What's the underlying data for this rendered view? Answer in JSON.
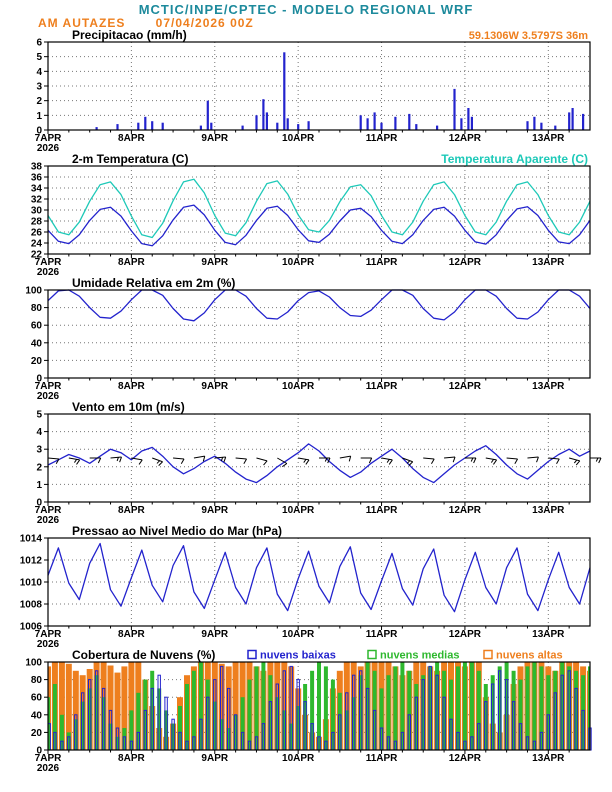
{
  "header": {
    "title": "MCTIC/INPE/CPTEC - MODELO REGIONAL WRF",
    "station": "AM AUTAZES",
    "run": "07/04/2026 00Z",
    "title_color": "#1d8a9c",
    "accent_color": "#ee7f1e"
  },
  "axis": {
    "x_tick_labels": [
      "7APR",
      "8APR",
      "9APR",
      "10APR",
      "11APR",
      "12APR",
      "13APR"
    ],
    "year": "2026",
    "span_hours": 156
  },
  "colors": {
    "line_blue": "#2323cd",
    "cyan": "#1ec9b8",
    "green": "#2eb82e",
    "orange": "#ee7f1e",
    "black": "#000000"
  },
  "chart_data": [
    {
      "id": "precip",
      "type": "bar",
      "title": "Precipitacao (mm/h)",
      "annotation": "59.1306W 3.5797S 36m",
      "ylim": [
        0,
        6
      ],
      "ytick_step": 1,
      "bar_color": "#2323cd",
      "events_hour_value": [
        [
          14,
          0.2
        ],
        [
          20,
          0.4
        ],
        [
          26,
          0.5
        ],
        [
          28,
          0.9
        ],
        [
          30,
          0.6
        ],
        [
          33,
          0.5
        ],
        [
          44,
          0.3
        ],
        [
          46,
          2.0
        ],
        [
          47,
          0.5
        ],
        [
          56,
          0.3
        ],
        [
          60,
          1.0
        ],
        [
          62,
          2.1
        ],
        [
          63,
          1.2
        ],
        [
          66,
          0.5
        ],
        [
          68,
          5.3
        ],
        [
          69,
          0.8
        ],
        [
          72,
          0.4
        ],
        [
          75,
          0.6
        ],
        [
          90,
          1.0
        ],
        [
          92,
          0.8
        ],
        [
          94,
          1.2
        ],
        [
          96,
          0.5
        ],
        [
          100,
          0.9
        ],
        [
          104,
          1.1
        ],
        [
          106,
          0.4
        ],
        [
          112,
          0.3
        ],
        [
          117,
          2.8
        ],
        [
          119,
          0.8
        ],
        [
          121,
          1.5
        ],
        [
          122,
          0.9
        ],
        [
          138,
          0.6
        ],
        [
          140,
          0.9
        ],
        [
          142,
          0.5
        ],
        [
          146,
          0.3
        ],
        [
          150,
          1.2
        ],
        [
          151,
          1.5
        ],
        [
          154,
          1.1
        ]
      ]
    },
    {
      "id": "temp",
      "type": "line",
      "title": "2-m Temperatura (C)",
      "legend_right": "Temperatura Aparente (C)",
      "ylim": [
        22,
        38
      ],
      "ytick_step": 2,
      "step_hours": 3,
      "series": [
        {
          "name": "2-m Temperatura (C)",
          "color": "#2323cd",
          "values": [
            26.3,
            24.3,
            23.9,
            25.5,
            28.1,
            30.1,
            30.5,
            28.9,
            26.2,
            23.9,
            23.5,
            25.3,
            28.2,
            30.5,
            30.9,
            29.1,
            26.3,
            24.1,
            23.7,
            25.4,
            28.1,
            30.3,
            30.7,
            29.0,
            26.4,
            24.4,
            24.1,
            25.6,
            28.0,
            30.0,
            30.3,
            28.8,
            26.3,
            24.3,
            23.9,
            25.5,
            28.1,
            30.1,
            30.5,
            28.9,
            26.3,
            24.2,
            23.8,
            25.5,
            28.1,
            30.2,
            30.6,
            29.0,
            26.3,
            24.2,
            23.9,
            25.5,
            28.1
          ]
        },
        {
          "name": "Temperatura Aparente (C)",
          "color": "#1ec9b8",
          "values": [
            29.0,
            26.0,
            25.5,
            27.8,
            31.6,
            34.6,
            35.1,
            32.8,
            28.9,
            25.5,
            25.0,
            27.6,
            31.7,
            35.1,
            35.6,
            33.1,
            29.0,
            25.8,
            25.3,
            27.7,
            31.6,
            34.8,
            35.3,
            32.9,
            29.1,
            26.4,
            26.0,
            28.1,
            31.5,
            34.2,
            34.6,
            32.6,
            29.0,
            26.0,
            25.5,
            27.8,
            31.6,
            34.6,
            35.1,
            32.8,
            29.0,
            26.0,
            25.5,
            27.8,
            31.6,
            34.6,
            35.1,
            32.8,
            29.0,
            26.0,
            25.5,
            27.8,
            31.6
          ]
        }
      ]
    },
    {
      "id": "rh",
      "type": "line",
      "title": "Umidade Relativa em 2m (%)",
      "ylim": [
        0,
        100
      ],
      "ytick_step": 20,
      "step_hours": 3,
      "series": [
        {
          "name": "Umidade Relativa em 2m (%)",
          "color": "#2323cd",
          "values": [
            88,
            99,
            100,
            93,
            80,
            69,
            68,
            76,
            89,
            100,
            100,
            94,
            79,
            67,
            65,
            74,
            89,
            100,
            100,
            93,
            79,
            68,
            67,
            75,
            88,
            97,
            99,
            92,
            80,
            71,
            70,
            77,
            89,
            100,
            100,
            94,
            79,
            68,
            66,
            75,
            89,
            100,
            100,
            93,
            79,
            68,
            67,
            75,
            89,
            100,
            100,
            93,
            79
          ]
        }
      ]
    },
    {
      "id": "wind",
      "type": "wind",
      "title": "Vento em 10m (m/s)",
      "ylim": [
        0,
        5
      ],
      "ytick_step": 1,
      "step_hours": 3,
      "series": [
        {
          "name": "Vento em 10m (m/s)",
          "color": "#2323cd",
          "values": [
            2.1,
            2.4,
            2.7,
            2.5,
            2.2,
            2.6,
            3.0,
            2.8,
            2.4,
            2.9,
            3.1,
            2.6,
            2.0,
            1.6,
            1.9,
            2.3,
            2.6,
            2.2,
            1.7,
            1.3,
            1.1,
            1.5,
            2.0,
            2.4,
            2.8,
            3.3,
            2.9,
            2.3,
            1.8,
            1.4,
            1.7,
            2.2,
            2.6,
            3.0,
            2.5,
            1.9,
            1.4,
            1.1,
            1.6,
            2.1,
            2.5,
            2.9,
            3.2,
            2.7,
            2.1,
            1.6,
            1.3,
            1.8,
            2.3,
            2.7,
            3.0,
            2.6,
            2.9
          ]
        }
      ],
      "barbs": {
        "step_hours": 6,
        "y_value": 2.5,
        "color": "#000000",
        "dir_deg": [
          95,
          100,
          90,
          85,
          100,
          110,
          95,
          80,
          85,
          95,
          105,
          120,
          100,
          90,
          80,
          90,
          100,
          110,
          95,
          85,
          90,
          100,
          95,
          85,
          95,
          105,
          90
        ]
      }
    },
    {
      "id": "pres",
      "type": "line",
      "title": "Pressao ao Nivel Medio do Mar (hPa)",
      "ylim": [
        1006,
        1014
      ],
      "ytick_step": 2,
      "step_hours": 3,
      "series": [
        {
          "name": "Pressao ao Nivel Medio do Mar (hPa)",
          "color": "#2323cd",
          "values": [
            1010.6,
            1013.1,
            1009.9,
            1008.4,
            1011.7,
            1013.5,
            1009.3,
            1007.8,
            1010.4,
            1012.9,
            1009.7,
            1008.2,
            1011.5,
            1013.3,
            1009.1,
            1007.6,
            1010.2,
            1012.7,
            1009.5,
            1008.0,
            1011.3,
            1013.1,
            1008.9,
            1007.4,
            1010.3,
            1012.8,
            1009.6,
            1008.1,
            1011.4,
            1013.2,
            1009.0,
            1007.5,
            1010.1,
            1012.6,
            1009.4,
            1007.9,
            1011.2,
            1013.0,
            1008.8,
            1007.3,
            1010.2,
            1012.7,
            1009.5,
            1008.0,
            1011.3,
            1013.1,
            1008.9,
            1007.4,
            1010.2,
            1012.7,
            1009.5,
            1008.0,
            1011.3
          ]
        }
      ]
    },
    {
      "id": "clouds",
      "type": "clouds",
      "title": "Cobertura de Nuvens (%)",
      "ylim": [
        0,
        100
      ],
      "ytick_step": 20,
      "step_hours": 2,
      "legend": [
        {
          "label": "nuvens baixas",
          "color": "#2323cd"
        },
        {
          "label": "nuvens medias",
          "color": "#2eb82e"
        },
        {
          "label": "nuvens altas",
          "color": "#ee7f1e"
        }
      ],
      "series": [
        {
          "name": "nuvens baixas",
          "color": "#2323cd",
          "style": "outline",
          "values": [
            30,
            20,
            10,
            15,
            40,
            65,
            80,
            90,
            70,
            45,
            25,
            15,
            10,
            20,
            45,
            70,
            85,
            60,
            35,
            20,
            10,
            15,
            35,
            60,
            80,
            95,
            70,
            40,
            20,
            10,
            15,
            30,
            55,
            75,
            90,
            95,
            80,
            55,
            30,
            15,
            10,
            20,
            40,
            65,
            85,
            90,
            70,
            45,
            25,
            15,
            10,
            20,
            40,
            60,
            80,
            95,
            85,
            60,
            35,
            20,
            10,
            15,
            30,
            55,
            75,
            90,
            80,
            55,
            30,
            15,
            10,
            20,
            40,
            65,
            85,
            90,
            70,
            45,
            25
          ]
        },
        {
          "name": "nuvens medias",
          "color": "#2eb82e",
          "style": "fill",
          "values": [
            60,
            75,
            40,
            20,
            35,
            55,
            70,
            85,
            60,
            30,
            15,
            25,
            45,
            65,
            80,
            90,
            70,
            45,
            30,
            50,
            75,
            90,
            100,
            80,
            55,
            35,
            25,
            40,
            60,
            80,
            95,
            100,
            85,
            60,
            45,
            30,
            50,
            75,
            90,
            100,
            95,
            80,
            65,
            45,
            60,
            85,
            100,
            90,
            70,
            85,
            95,
            100,
            90,
            75,
            85,
            95,
            100,
            90,
            80,
            95,
            100,
            100,
            90,
            75,
            85,
            95,
            100,
            90,
            80,
            95,
            100,
            95,
            85,
            90,
            100,
            95,
            90,
            85,
            95
          ]
        },
        {
          "name": "nuvens altas",
          "color": "#ee7f1e",
          "style": "fill",
          "values": [
            95,
            100,
            100,
            98,
            90,
            85,
            92,
            100,
            100,
            96,
            88,
            95,
            100,
            100,
            80,
            50,
            25,
            15,
            30,
            60,
            85,
            95,
            100,
            100,
            100,
            98,
            95,
            100,
            100,
            100,
            95,
            90,
            100,
            100,
            100,
            95,
            70,
            40,
            20,
            15,
            35,
            70,
            90,
            100,
            100,
            95,
            100,
            100,
            100,
            100,
            95,
            85,
            90,
            100,
            100,
            95,
            90,
            100,
            100,
            100,
            95,
            100,
            100,
            60,
            30,
            20,
            40,
            75,
            95,
            100,
            100,
            100,
            95,
            90,
            100,
            100,
            100,
            95,
            90
          ]
        }
      ]
    }
  ]
}
